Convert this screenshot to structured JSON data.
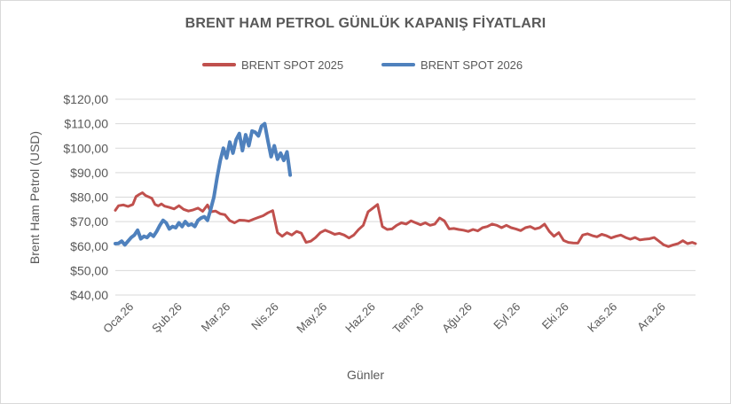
{
  "chart_data": {
    "type": "line",
    "title": "BRENT HAM PETROL GÜNLÜK KAPANIŞ FİYATLARI",
    "xlabel": "Günler",
    "ylabel": "Brent Ham Petrol (USD)",
    "x_tick_labels": [
      "Oca.26",
      "Şub.26",
      "Mar.26",
      "Nis.26",
      "May.26",
      "Haz.26",
      "Tem.26",
      "Ağu.26",
      "Eyl.26",
      "Eki.26",
      "Kas.26",
      "Ara.26"
    ],
    "y_tick_labels": [
      "$40,00",
      "$50,00",
      "$60,00",
      "$70,00",
      "$80,00",
      "$90,00",
      "$100,00",
      "$110,00",
      "$120,00"
    ],
    "ylim": [
      40,
      120
    ],
    "y_step": 10,
    "xlim": [
      0,
      365
    ],
    "grid": true,
    "legend_position": "top",
    "series": [
      {
        "name": "BRENT SPOT 2025",
        "color": "#c0504d",
        "x": [
          0,
          2,
          5,
          8,
          11,
          13,
          15,
          17,
          19,
          21,
          23,
          25,
          27,
          29,
          31,
          34,
          37,
          40,
          43,
          46,
          49,
          52,
          55,
          58,
          60,
          63,
          66,
          69,
          72,
          75,
          78,
          81,
          84,
          87,
          90,
          93,
          96,
          99,
          102,
          105,
          108,
          111,
          114,
          117,
          120,
          123,
          126,
          129,
          132,
          135,
          138,
          141,
          144,
          147,
          150,
          153,
          156,
          159,
          162,
          165,
          168,
          171,
          174,
          177,
          180,
          183,
          186,
          189,
          192,
          195,
          198,
          201,
          204,
          207,
          210,
          213,
          216,
          219,
          222,
          225,
          228,
          231,
          234,
          237,
          240,
          243,
          246,
          249,
          252,
          255,
          258,
          261,
          264,
          267,
          270,
          273,
          276,
          279,
          282,
          285,
          288,
          291,
          294,
          297,
          300,
          303,
          306,
          309,
          312,
          315,
          318,
          321,
          324,
          327,
          330,
          333,
          336,
          339,
          342,
          345,
          348,
          351,
          354,
          357,
          360,
          363,
          365
        ],
        "values": [
          74.6,
          76.5,
          76.8,
          76.2,
          77.0,
          80.2,
          81.1,
          81.8,
          80.7,
          80.1,
          79.5,
          77.0,
          76.4,
          77.2,
          76.3,
          75.8,
          75.2,
          76.5,
          75.0,
          74.3,
          74.8,
          75.5,
          74.2,
          76.8,
          74.0,
          74.3,
          73.2,
          72.8,
          70.4,
          69.5,
          70.6,
          70.5,
          70.2,
          71.0,
          71.7,
          72.4,
          73.6,
          74.5,
          65.5,
          64.0,
          65.5,
          64.5,
          66.0,
          65.3,
          61.5,
          62.0,
          63.5,
          65.5,
          66.5,
          65.7,
          64.8,
          65.2,
          64.5,
          63.3,
          64.5,
          66.7,
          68.5,
          74.0,
          75.5,
          77.0,
          68.0,
          66.8,
          67.0,
          68.5,
          69.5,
          69.0,
          70.3,
          69.5,
          68.7,
          69.5,
          68.5,
          69.0,
          71.5,
          70.3,
          67.0,
          67.2,
          66.8,
          66.5,
          66.0,
          66.8,
          66.2,
          67.5,
          68.0,
          69.0,
          68.5,
          67.5,
          68.5,
          67.5,
          67.0,
          66.3,
          67.5,
          68.0,
          67.0,
          67.5,
          69.0,
          66.0,
          64.0,
          65.5,
          62.3,
          61.5,
          61.3,
          61.2,
          64.5,
          65.0,
          64.3,
          63.8,
          64.8,
          64.2,
          63.3,
          64.0,
          64.5,
          63.5,
          62.8,
          63.5,
          62.5,
          62.8,
          63.0,
          63.5,
          62.0,
          60.5,
          59.8,
          60.5,
          61.0,
          62.2,
          61.0,
          61.5,
          61.0
        ],
        "stroke_width": 3
      },
      {
        "name": "BRENT SPOT 2026",
        "color": "#4f81bd",
        "x": [
          0,
          2,
          4,
          6,
          8,
          10,
          12,
          14,
          16,
          18,
          20,
          22,
          24,
          26,
          28,
          30,
          32,
          34,
          36,
          38,
          40,
          42,
          44,
          46,
          48,
          50,
          52,
          54,
          56,
          58,
          60,
          62,
          64,
          66,
          68,
          70,
          72,
          74,
          76,
          78,
          80,
          82,
          84,
          86,
          88,
          90,
          92,
          94,
          96,
          98,
          100,
          102,
          104,
          106,
          108,
          110
        ],
        "values": [
          61.0,
          61.1,
          62.0,
          60.5,
          62.0,
          63.5,
          64.5,
          66.5,
          63.0,
          64.0,
          63.5,
          65.0,
          64.0,
          66.0,
          68.5,
          70.5,
          69.5,
          67.0,
          68.0,
          67.5,
          69.5,
          68.0,
          70.0,
          68.5,
          69.0,
          68.0,
          70.5,
          71.5,
          72.0,
          70.5,
          75.0,
          80.0,
          88.0,
          95.0,
          100.0,
          96.0,
          102.5,
          98.0,
          103.5,
          106.0,
          99.0,
          105.5,
          101.0,
          107.0,
          106.5,
          105.0,
          109.0,
          110.0,
          103.0,
          96.5,
          101.0,
          95.5,
          98.0,
          95.0,
          98.5,
          89.0
        ],
        "stroke_width": 4
      }
    ]
  }
}
